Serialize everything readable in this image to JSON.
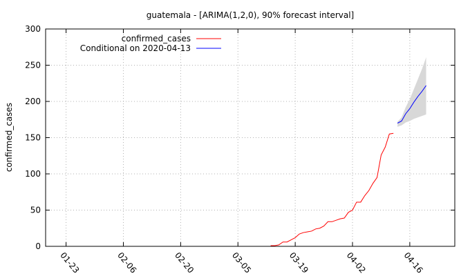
{
  "chart_data": {
    "type": "line",
    "title": "guatemala -  [ARIMA(1,2,0), 90% forecast interval]",
    "xlabel": "",
    "ylabel": "confirmed_cases",
    "ylim": [
      0,
      300
    ],
    "yticks": [
      0,
      50,
      100,
      150,
      200,
      250,
      300
    ],
    "xlim": [
      "2020-01-18",
      "2020-04-27"
    ],
    "xticks": [
      "2020-01-23",
      "2020-02-06",
      "2020-02-20",
      "2020-03-05",
      "2020-03-19",
      "2020-04-02",
      "2020-04-16"
    ],
    "xtick_labels": [
      "01-23",
      "02-06",
      "02-20",
      "03-05",
      "03-19",
      "04-02",
      "04-16"
    ],
    "grid": true,
    "legend_position": "top-left",
    "series": [
      {
        "name": "confirmed_cases",
        "color": "#ff0000",
        "points": [
          [
            "2020-03-13",
            1
          ],
          [
            "2020-03-14",
            1
          ],
          [
            "2020-03-15",
            2
          ],
          [
            "2020-03-16",
            6
          ],
          [
            "2020-03-17",
            6
          ],
          [
            "2020-03-18",
            9
          ],
          [
            "2020-03-19",
            12
          ],
          [
            "2020-03-20",
            17
          ],
          [
            "2020-03-21",
            19
          ],
          [
            "2020-03-22",
            20
          ],
          [
            "2020-03-23",
            21
          ],
          [
            "2020-03-24",
            24
          ],
          [
            "2020-03-25",
            25
          ],
          [
            "2020-03-26",
            28
          ],
          [
            "2020-03-27",
            34
          ],
          [
            "2020-03-28",
            34
          ],
          [
            "2020-03-29",
            36
          ],
          [
            "2020-03-30",
            38
          ],
          [
            "2020-03-31",
            39
          ],
          [
            "2020-04-01",
            47
          ],
          [
            "2020-04-02",
            50
          ],
          [
            "2020-04-03",
            61
          ],
          [
            "2020-04-04",
            61
          ],
          [
            "2020-04-05",
            70
          ],
          [
            "2020-04-06",
            77
          ],
          [
            "2020-04-07",
            87
          ],
          [
            "2020-04-08",
            95
          ],
          [
            "2020-04-09",
            126
          ],
          [
            "2020-04-10",
            137
          ],
          [
            "2020-04-11",
            155
          ],
          [
            "2020-04-12",
            156
          ]
        ]
      },
      {
        "name": "Conditional on 2020-04-13",
        "color": "#0000ff",
        "points": [
          [
            "2020-04-13",
            170
          ],
          [
            "2020-04-14",
            173
          ],
          [
            "2020-04-15",
            183
          ],
          [
            "2020-04-16",
            190
          ],
          [
            "2020-04-17",
            199
          ],
          [
            "2020-04-18",
            207
          ],
          [
            "2020-04-19",
            214
          ],
          [
            "2020-04-20",
            222
          ]
        ]
      }
    ],
    "forecast_interval": {
      "level": "90%",
      "color": "#d8d8d8",
      "upper": [
        [
          "2020-04-13",
          172
        ],
        [
          "2020-04-14",
          178
        ],
        [
          "2020-04-15",
          192
        ],
        [
          "2020-04-16",
          203
        ],
        [
          "2020-04-17",
          217
        ],
        [
          "2020-04-18",
          231
        ],
        [
          "2020-04-19",
          245
        ],
        [
          "2020-04-20",
          261
        ]
      ],
      "lower": [
        [
          "2020-04-13",
          165
        ],
        [
          "2020-04-14",
          167
        ],
        [
          "2020-04-15",
          171
        ],
        [
          "2020-04-16",
          173
        ],
        [
          "2020-04-17",
          176
        ],
        [
          "2020-04-18",
          178
        ],
        [
          "2020-04-19",
          180
        ],
        [
          "2020-04-20",
          182
        ]
      ]
    }
  }
}
